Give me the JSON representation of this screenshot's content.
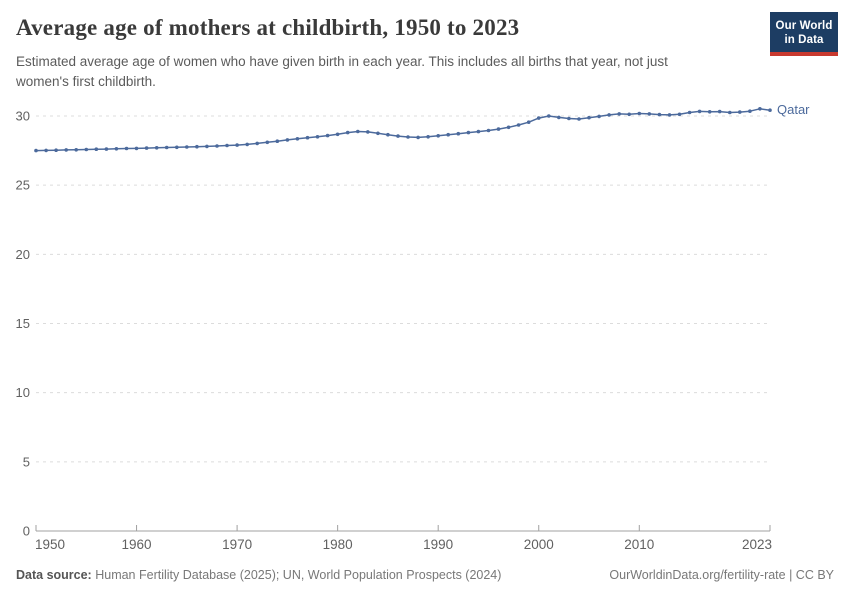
{
  "header": {
    "title": "Average age of mothers at childbirth, 1950 to 2023",
    "subtitle": "Estimated average age of women who have given birth in each year. This includes all births that year, not just women's first childbirth.",
    "logo": {
      "line1": "Our World",
      "line2": "in Data",
      "bg_color": "#1d3d63",
      "stripe_color": "#c8392f"
    }
  },
  "chart_data": {
    "type": "line",
    "title": "Average age of mothers at childbirth, 1950 to 2023",
    "xlabel": "",
    "ylabel": "",
    "xlim": [
      1950,
      2023
    ],
    "ylim": [
      0,
      30
    ],
    "x_ticks": [
      1950,
      1960,
      1970,
      1980,
      1990,
      2000,
      2010,
      2023
    ],
    "y_ticks": [
      0,
      5,
      10,
      15,
      20,
      25,
      30
    ],
    "grid": "horizontal-dashed",
    "legend_position": "series-label-right-of-line",
    "series": [
      {
        "name": "Qatar",
        "color": "#4c6a9c",
        "x": [
          1950,
          1951,
          1952,
          1953,
          1954,
          1955,
          1956,
          1957,
          1958,
          1959,
          1960,
          1961,
          1962,
          1963,
          1964,
          1965,
          1966,
          1967,
          1968,
          1969,
          1970,
          1971,
          1972,
          1973,
          1974,
          1975,
          1976,
          1977,
          1978,
          1979,
          1980,
          1981,
          1982,
          1983,
          1984,
          1985,
          1986,
          1987,
          1988,
          1989,
          1990,
          1991,
          1992,
          1993,
          1994,
          1995,
          1996,
          1997,
          1998,
          1999,
          2000,
          2001,
          2002,
          2003,
          2004,
          2005,
          2006,
          2007,
          2008,
          2009,
          2010,
          2011,
          2012,
          2013,
          2014,
          2015,
          2016,
          2017,
          2018,
          2019,
          2020,
          2021,
          2022,
          2023
        ],
        "values": [
          27.5,
          27.51,
          27.53,
          27.55,
          27.56,
          27.58,
          27.6,
          27.61,
          27.63,
          27.65,
          27.66,
          27.68,
          27.7,
          27.72,
          27.74,
          27.76,
          27.78,
          27.8,
          27.83,
          27.87,
          27.9,
          27.95,
          28.02,
          28.1,
          28.18,
          28.27,
          28.35,
          28.43,
          28.5,
          28.58,
          28.68,
          28.8,
          28.88,
          28.85,
          28.75,
          28.65,
          28.55,
          28.48,
          28.45,
          28.5,
          28.57,
          28.65,
          28.72,
          28.8,
          28.87,
          28.95,
          29.05,
          29.18,
          29.35,
          29.55,
          29.85,
          30.0,
          29.9,
          29.82,
          29.78,
          29.88,
          29.97,
          30.08,
          30.15,
          30.12,
          30.18,
          30.15,
          30.1,
          30.08,
          30.12,
          30.25,
          30.33,
          30.3,
          30.32,
          30.25,
          30.28,
          30.35,
          30.52,
          30.42
        ]
      }
    ],
    "colors": {
      "gridline": "#dcdcdc",
      "axis": "#a0a0a0",
      "tick_label": "#616161"
    }
  },
  "footer": {
    "datasource_label": "Data source:",
    "datasource_text": "Human Fertility Database (2025); UN, World Population Prospects (2024)",
    "link": "OurWorldinData.org/fertility-rate | CC BY"
  }
}
